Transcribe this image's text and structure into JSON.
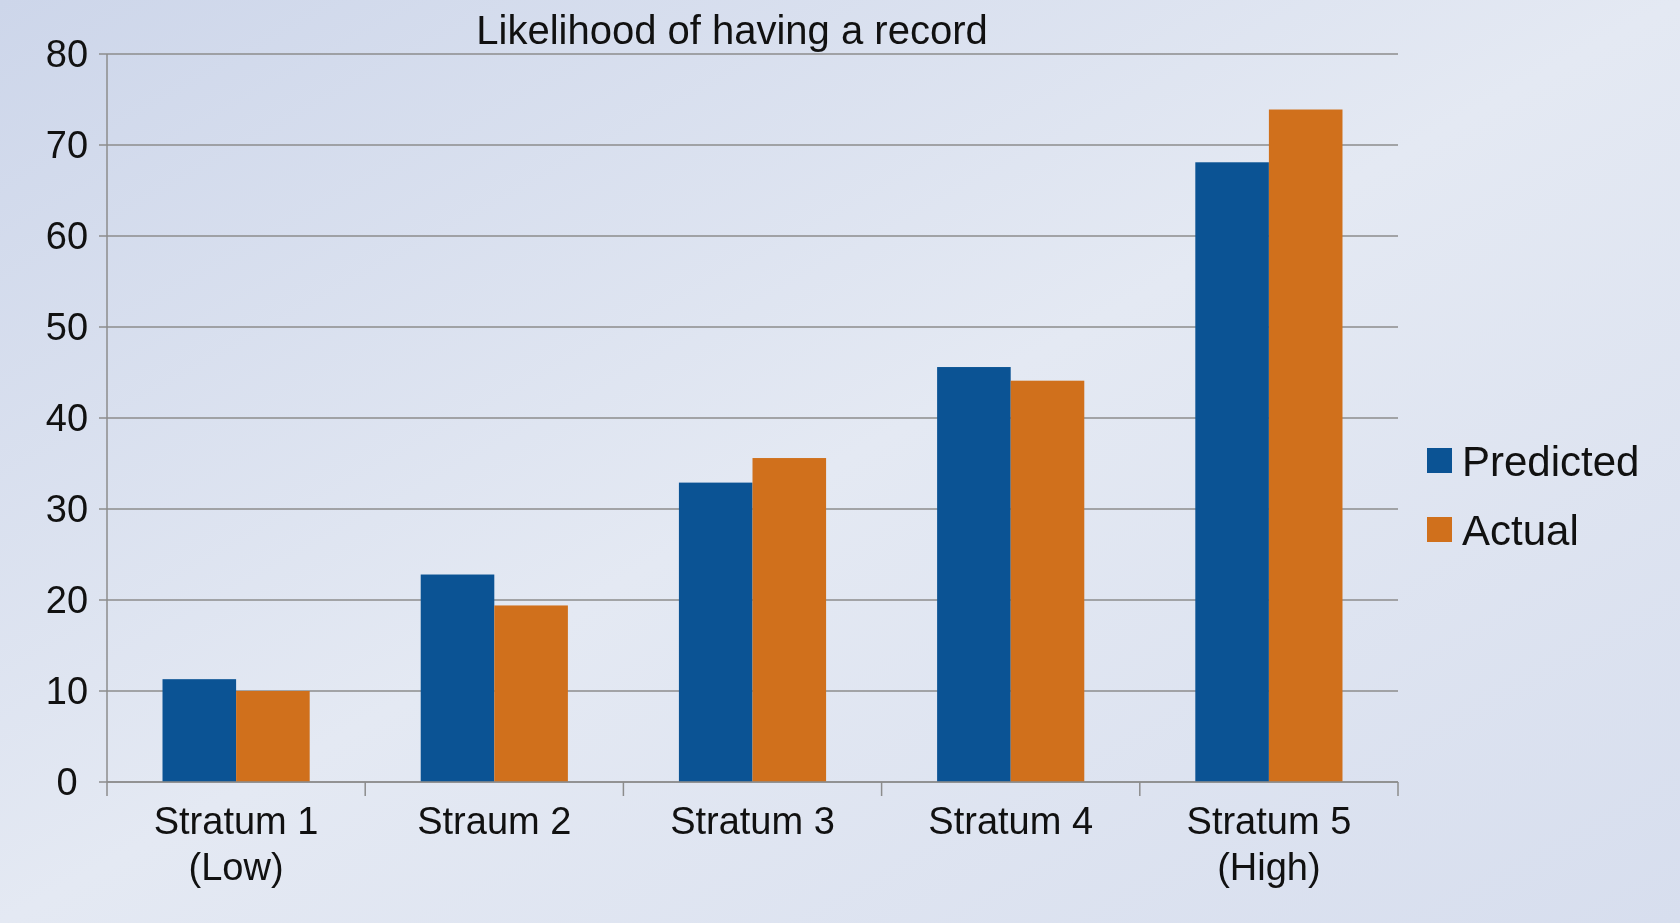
{
  "chart_data": {
    "type": "bar",
    "title": "Likelihood of having a record",
    "categories": [
      "Stratum 1\n(Low)",
      "Straum 2",
      "Stratum 3",
      "Stratum 4",
      "Stratum 5\n(High)"
    ],
    "series": [
      {
        "name": "Predicted",
        "color": "#0b5394",
        "values": [
          11.3,
          22.8,
          32.9,
          45.6,
          68.1
        ]
      },
      {
        "name": "Actual",
        "color": "#d0701c",
        "values": [
          10,
          19.4,
          35.6,
          44.1,
          73.9
        ]
      }
    ],
    "ylim": [
      0,
      80
    ],
    "yticks": [
      0,
      10,
      20,
      30,
      40,
      50,
      60,
      70,
      80
    ],
    "grid": "y",
    "legend": "right"
  }
}
